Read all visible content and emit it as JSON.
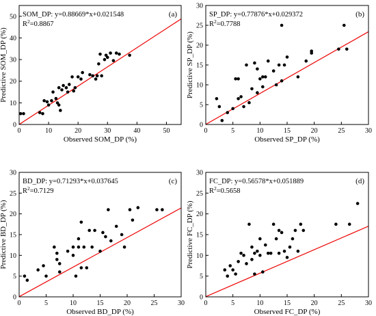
{
  "chart_data": [
    {
      "type": "scatter",
      "panel_label": "(a)",
      "equation": "SOM_DP: y=0.88669*x+0.021548",
      "r2_label": "R",
      "r2_sup": "2",
      "r2_value": "=0.8867",
      "xlabel": "Observed SOM_DP (%)",
      "ylabel": "Predictive SOM_DP (%)",
      "xlim": [
        0,
        55
      ],
      "ylim": [
        0,
        55
      ],
      "xticks": [
        0,
        10,
        20,
        30,
        40,
        50
      ],
      "yticks": [
        0,
        10,
        20,
        30,
        40,
        50
      ],
      "fit": {
        "slope": 0.88669,
        "intercept": 0.021548
      },
      "fit_color": "#ee1111",
      "points": [
        [
          0.5,
          5
        ],
        [
          1.5,
          5
        ],
        [
          7,
          5.5
        ],
        [
          8,
          5
        ],
        [
          8.5,
          11
        ],
        [
          9.5,
          10.5
        ],
        [
          10,
          9
        ],
        [
          11,
          11
        ],
        [
          11.5,
          15
        ],
        [
          12.5,
          12
        ],
        [
          13,
          10
        ],
        [
          13.5,
          9
        ],
        [
          14,
          6.5
        ],
        [
          13.5,
          17
        ],
        [
          14.5,
          16
        ],
        [
          15,
          18
        ],
        [
          16,
          17
        ],
        [
          16.5,
          15
        ],
        [
          17,
          18.5
        ],
        [
          18,
          22
        ],
        [
          18.5,
          15.5
        ],
        [
          19,
          17
        ],
        [
          20,
          22
        ],
        [
          21,
          21
        ],
        [
          21.5,
          24
        ],
        [
          24,
          23
        ],
        [
          25,
          22.5
        ],
        [
          26,
          21
        ],
        [
          26.5,
          22.5
        ],
        [
          27,
          28
        ],
        [
          27.5,
          32.5
        ],
        [
          28,
          22.5
        ],
        [
          29,
          30
        ],
        [
          29.5,
          32
        ],
        [
          30,
          31
        ],
        [
          31,
          33
        ],
        [
          32,
          29.5
        ],
        [
          33,
          33
        ],
        [
          34,
          32.5
        ],
        [
          37.5,
          32
        ]
      ]
    },
    {
      "type": "scatter",
      "panel_label": "(b)",
      "equation": "SP_DP: y=0.77876*x+0.029372",
      "r2_label": "R",
      "r2_sup": "2",
      "r2_value": "=0.7788",
      "xlabel": "Observed SP_DP (%)",
      "ylabel": "Predictive SP_DP (%)",
      "xlim": [
        0,
        30
      ],
      "ylim": [
        0,
        30
      ],
      "xticks": [
        0,
        5,
        10,
        15,
        20,
        25,
        30
      ],
      "yticks": [
        0,
        5,
        10,
        15,
        20,
        25,
        30
      ],
      "fit": {
        "slope": 0.77876,
        "intercept": 0.029372
      },
      "fit_color": "#ee1111",
      "points": [
        [
          2,
          6.5
        ],
        [
          2.5,
          4.5
        ],
        [
          3,
          1
        ],
        [
          4,
          3
        ],
        [
          5,
          4
        ],
        [
          5.5,
          11.5
        ],
        [
          6,
          11.5
        ],
        [
          6,
          6.5
        ],
        [
          6.5,
          7
        ],
        [
          7,
          4.5
        ],
        [
          7.5,
          15
        ],
        [
          8,
          5.5
        ],
        [
          8.5,
          9
        ],
        [
          9,
          15.5
        ],
        [
          9.5,
          8
        ],
        [
          9.5,
          14
        ],
        [
          10,
          11.5
        ],
        [
          10.5,
          12
        ],
        [
          10.5,
          9.5
        ],
        [
          11,
          12
        ],
        [
          11.5,
          16
        ],
        [
          12.5,
          13.5
        ],
        [
          13,
          10
        ],
        [
          13.5,
          15
        ],
        [
          14,
          25
        ],
        [
          14,
          11
        ],
        [
          14.5,
          15
        ],
        [
          15,
          17
        ],
        [
          17,
          12
        ],
        [
          18.5,
          16
        ],
        [
          19.5,
          18
        ],
        [
          19.5,
          18.5
        ],
        [
          24.5,
          19
        ],
        [
          25.5,
          25
        ],
        [
          26,
          19
        ]
      ]
    },
    {
      "type": "scatter",
      "panel_label": "(c)",
      "equation": "BD_DP: y=0.71293*x+0.037645",
      "r2_label": "R",
      "r2_sup": "2",
      "r2_value": "=0.7129",
      "xlabel": "Observed BD_DP (%)",
      "ylabel": "Predictive BD_DP (%)",
      "xlim": [
        0,
        30
      ],
      "ylim": [
        0,
        30
      ],
      "xticks": [
        0,
        5,
        10,
        15,
        20,
        25,
        30
      ],
      "yticks": [
        0,
        5,
        10,
        15,
        20,
        25,
        30
      ],
      "fit": {
        "slope": 0.71293,
        "intercept": 0.037645
      },
      "fit_color": "#ee1111",
      "points": [
        [
          1,
          5
        ],
        [
          1.5,
          4
        ],
        [
          3.5,
          6.5
        ],
        [
          4.5,
          7.5
        ],
        [
          5,
          5
        ],
        [
          6.5,
          12
        ],
        [
          7,
          10.5
        ],
        [
          7,
          9
        ],
        [
          7.5,
          8
        ],
        [
          7.5,
          6
        ],
        [
          9,
          11
        ],
        [
          10,
          12
        ],
        [
          10,
          10
        ],
        [
          10.5,
          5
        ],
        [
          11,
          12
        ],
        [
          11,
          14
        ],
        [
          11.5,
          18
        ],
        [
          11.5,
          7
        ],
        [
          12,
          12
        ],
        [
          12.5,
          7
        ],
        [
          13,
          16
        ],
        [
          13.5,
          12
        ],
        [
          14,
          16
        ],
        [
          15,
          11
        ],
        [
          15.5,
          15.5
        ],
        [
          16,
          14.5
        ],
        [
          16.5,
          21
        ],
        [
          17,
          13.5
        ],
        [
          18,
          17
        ],
        [
          19,
          15
        ],
        [
          19.5,
          12
        ],
        [
          20.5,
          21
        ],
        [
          21,
          18.5
        ],
        [
          22,
          21.5
        ],
        [
          25.5,
          21
        ],
        [
          26.5,
          21
        ]
      ]
    },
    {
      "type": "scatter",
      "panel_label": "(d)",
      "equation": "FC_DP: y=0.56578*x+0.051889",
      "r2_label": "R",
      "r2_sup": "2",
      "r2_value": "=0.5658",
      "xlabel": "Observed FC_DP (%)",
      "ylabel": "Predictive FC_DP (%)",
      "xlim": [
        0,
        30
      ],
      "ylim": [
        0,
        30
      ],
      "xticks": [
        0,
        5,
        10,
        15,
        20,
        25,
        30
      ],
      "yticks": [
        0,
        5,
        10,
        15,
        20,
        25,
        30
      ],
      "fit": {
        "slope": 0.56578,
        "intercept": 0.051889
      },
      "fit_color": "#ee1111",
      "points": [
        [
          3.5,
          6.5
        ],
        [
          4,
          5
        ],
        [
          4.5,
          7.5
        ],
        [
          5,
          6.5
        ],
        [
          5.5,
          5.5
        ],
        [
          6,
          8.5
        ],
        [
          6.5,
          10.5
        ],
        [
          7,
          10
        ],
        [
          7.5,
          8
        ],
        [
          8,
          17.5
        ],
        [
          8.5,
          12
        ],
        [
          8.5,
          9
        ],
        [
          9,
          10.5
        ],
        [
          9,
          5.5
        ],
        [
          9.5,
          11
        ],
        [
          10,
          14
        ],
        [
          10,
          10
        ],
        [
          10.5,
          6
        ],
        [
          11,
          12.5
        ],
        [
          11.5,
          10.5
        ],
        [
          12,
          10.5
        ],
        [
          12.5,
          17.5
        ],
        [
          13,
          14
        ],
        [
          13.5,
          16
        ],
        [
          13.5,
          10.5
        ],
        [
          14,
          15.5
        ],
        [
          14.5,
          11
        ],
        [
          15,
          9.5
        ],
        [
          15.5,
          12
        ],
        [
          16,
          14
        ],
        [
          16.5,
          16
        ],
        [
          17,
          11
        ],
        [
          17.5,
          17.5
        ],
        [
          18,
          16
        ],
        [
          24,
          17.5
        ],
        [
          26.5,
          17.5
        ],
        [
          28,
          22.5
        ]
      ]
    }
  ]
}
